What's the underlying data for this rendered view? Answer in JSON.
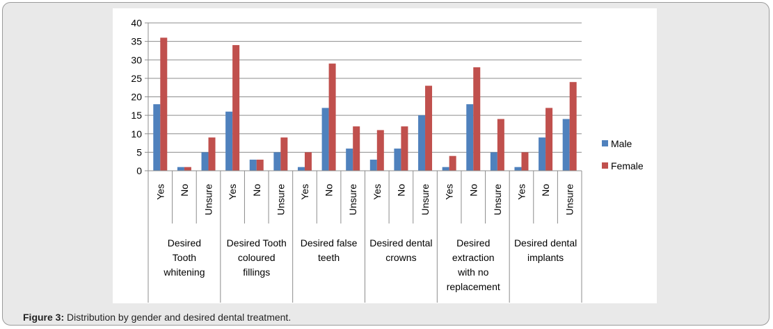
{
  "caption": {
    "label": "Figure 3:",
    "text": " Distribution by gender and desired dental treatment."
  },
  "chart_data": {
    "type": "bar",
    "ylim": [
      0,
      40
    ],
    "yticks": [
      0,
      5,
      10,
      15,
      20,
      25,
      30,
      35,
      40
    ],
    "grid": true,
    "legend_position": "right",
    "groups": [
      {
        "label": "Desired Tooth whitening",
        "lines": [
          "Desired",
          "Tooth",
          "whitening"
        ],
        "categories": [
          "Yes",
          "No",
          "Unsure"
        ]
      },
      {
        "label": "Desired Tooth coloured fillings",
        "lines": [
          "Desired Tooth",
          "coloured",
          "fillings"
        ],
        "categories": [
          "Yes",
          "No",
          "Unsure"
        ]
      },
      {
        "label": "Desired false teeth",
        "lines": [
          "Desired false",
          "teeth"
        ],
        "categories": [
          "Yes",
          "No",
          "Unsure"
        ]
      },
      {
        "label": "Desired dental crowns",
        "lines": [
          "Desired dental",
          "crowns"
        ],
        "categories": [
          "Yes",
          "No",
          "Unsure"
        ]
      },
      {
        "label": "Desired extraction with no replacement",
        "lines": [
          "Desired",
          "extraction",
          "with no",
          "replacement"
        ],
        "categories": [
          "Yes",
          "No",
          "Unsure"
        ]
      },
      {
        "label": "Desired dental implants",
        "lines": [
          "Desired dental",
          "implants"
        ],
        "categories": [
          "Yes",
          "No",
          "Unsure"
        ]
      }
    ],
    "series": [
      {
        "name": "Male",
        "color": "#4f81bd",
        "values": [
          18,
          1,
          5,
          16,
          3,
          5,
          1,
          17,
          6,
          3,
          6,
          15,
          1,
          18,
          5,
          1,
          9,
          14
        ]
      },
      {
        "name": "Female",
        "color": "#c0504d",
        "values": [
          36,
          1,
          9,
          34,
          3,
          9,
          5,
          29,
          12,
          11,
          12,
          23,
          4,
          28,
          14,
          5,
          17,
          24
        ]
      }
    ]
  }
}
